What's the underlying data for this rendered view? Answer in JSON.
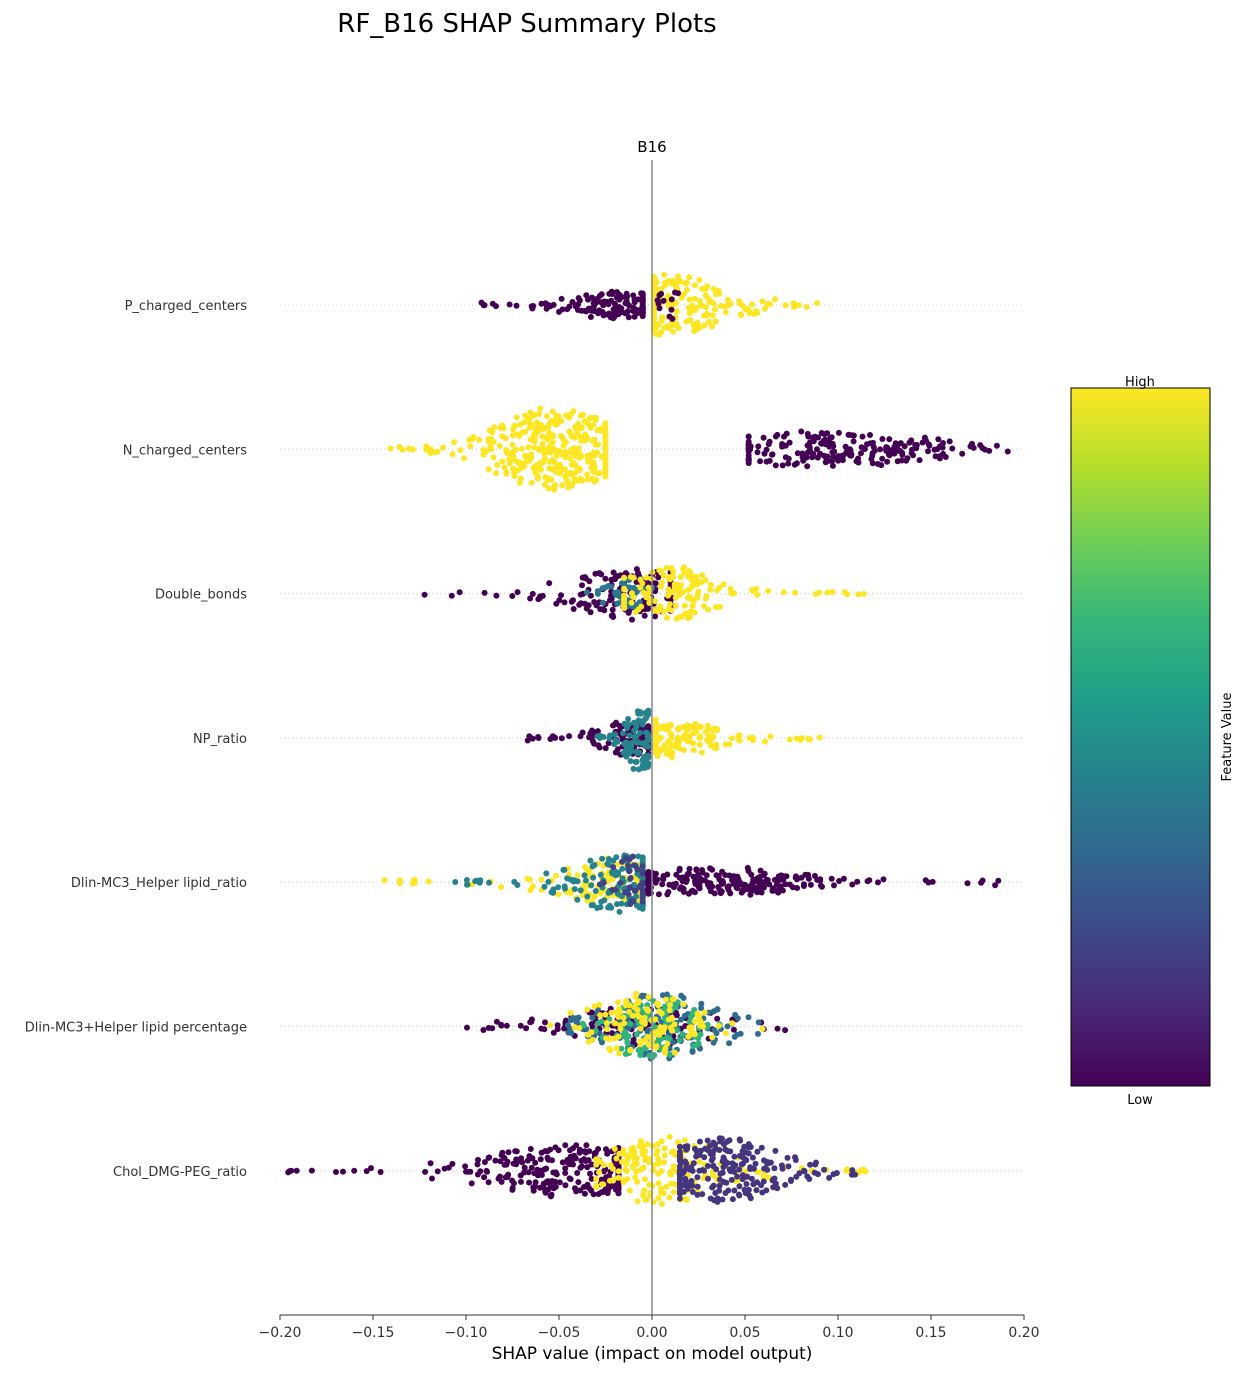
{
  "chart_data": {
    "type": "scatter",
    "title": "RF_B16 SHAP Summary Plots",
    "subtitle": "B16",
    "xlabel": "SHAP value (impact on model output)",
    "xlim": [
      -0.2,
      0.2
    ],
    "xticks": [
      -0.2,
      -0.15,
      -0.1,
      -0.05,
      0.0,
      0.05,
      0.1,
      0.15,
      0.2
    ],
    "xtick_labels": [
      "−0.20",
      "−0.15",
      "−0.10",
      "−0.05",
      "0.00",
      "0.05",
      "0.10",
      "0.15",
      "0.20"
    ],
    "colorbar": {
      "label": "Feature Value",
      "high_label": "High",
      "low_label": "Low",
      "colors": [
        "#440154",
        "#482878",
        "#3e4989",
        "#31688e",
        "#26828e",
        "#1f9e89",
        "#35b779",
        "#6ece58",
        "#b5de2b",
        "#fde725"
      ]
    },
    "features": [
      {
        "name": "P_charged_centers",
        "clusters": [
          {
            "color": 0.0,
            "min": -0.092,
            "max": -0.005,
            "center": -0.015,
            "spread": 0.018,
            "width": 0.22,
            "count": 150
          },
          {
            "color": 1.0,
            "min": 0.001,
            "max": 0.09,
            "center": 0.009,
            "spread": 0.018,
            "width": 0.5,
            "count": 200
          },
          {
            "color": 0.0,
            "min": 0.003,
            "max": 0.015,
            "center": 0.009,
            "spread": 0.004,
            "width": 0.3,
            "count": 12
          }
        ]
      },
      {
        "name": "N_charged_centers",
        "clusters": [
          {
            "color": 1.0,
            "min": -0.141,
            "max": -0.025,
            "center": -0.052,
            "spread": 0.02,
            "width": 0.7,
            "count": 340
          },
          {
            "color": 0.0,
            "min": 0.052,
            "max": 0.192,
            "center": 0.097,
            "spread": 0.035,
            "width": 0.3,
            "count": 210
          }
        ]
      },
      {
        "name": "Double_bonds",
        "clusters": [
          {
            "color": 0.0,
            "min": -0.125,
            "max": 0.01,
            "center": -0.012,
            "spread": 0.02,
            "width": 0.45,
            "count": 150
          },
          {
            "color": 0.4,
            "min": -0.035,
            "max": 0.0,
            "center": -0.015,
            "spread": 0.01,
            "width": 0.3,
            "count": 40
          },
          {
            "color": 1.0,
            "min": -0.015,
            "max": 0.124,
            "center": 0.01,
            "spread": 0.018,
            "width": 0.45,
            "count": 140
          }
        ]
      },
      {
        "name": "NP_ratio",
        "clusters": [
          {
            "color": 0.0,
            "min": -0.068,
            "max": -0.002,
            "center": -0.012,
            "spread": 0.01,
            "width": 0.3,
            "count": 110
          },
          {
            "color": 0.45,
            "min": -0.03,
            "max": -0.002,
            "center": -0.006,
            "spread": 0.005,
            "width": 0.55,
            "count": 90
          },
          {
            "color": 1.0,
            "min": 0.002,
            "max": 0.092,
            "center": 0.012,
            "spread": 0.015,
            "width": 0.3,
            "count": 130
          }
        ]
      },
      {
        "name": "Dlin-MC3_Helper lipid_ratio",
        "clusters": [
          {
            "color": 1.0,
            "min": -0.145,
            "max": -0.008,
            "center": -0.022,
            "spread": 0.02,
            "width": 0.4,
            "count": 120
          },
          {
            "color": 0.45,
            "min": -0.11,
            "max": -0.005,
            "center": -0.018,
            "spread": 0.018,
            "width": 0.5,
            "count": 140
          },
          {
            "color": 0.2,
            "min": -0.03,
            "max": -0.005,
            "center": -0.012,
            "spread": 0.006,
            "width": 0.45,
            "count": 40
          },
          {
            "color": 0.0,
            "min": -0.002,
            "max": 0.192,
            "center": 0.03,
            "spread": 0.03,
            "width": 0.22,
            "count": 230
          }
        ]
      },
      {
        "name": "Dlin-MC3+Helper lipid percentage",
        "clusters": [
          {
            "color": 0.0,
            "min": -0.12,
            "max": 0.08,
            "center": -0.005,
            "spread": 0.025,
            "width": 0.35,
            "count": 140
          },
          {
            "color": 0.35,
            "min": -0.05,
            "max": 0.065,
            "center": 0.005,
            "spread": 0.02,
            "width": 0.55,
            "count": 130
          },
          {
            "color": 0.65,
            "min": -0.04,
            "max": 0.04,
            "center": 0.0,
            "spread": 0.015,
            "width": 0.55,
            "count": 110
          },
          {
            "color": 1.0,
            "min": -0.07,
            "max": 0.06,
            "center": -0.005,
            "spread": 0.018,
            "width": 0.55,
            "count": 120
          }
        ]
      },
      {
        "name": "Chol_DMG-PEG_ratio",
        "clusters": [
          {
            "color": 0.0,
            "min": -0.196,
            "max": -0.018,
            "center": -0.04,
            "spread": 0.03,
            "width": 0.45,
            "count": 260
          },
          {
            "color": 1.0,
            "min": -0.03,
            "max": 0.12,
            "center": 0.005,
            "spread": 0.02,
            "width": 0.55,
            "count": 180
          },
          {
            "color": 0.15,
            "min": 0.015,
            "max": 0.11,
            "center": 0.035,
            "spread": 0.022,
            "width": 0.55,
            "count": 220
          }
        ]
      }
    ]
  }
}
